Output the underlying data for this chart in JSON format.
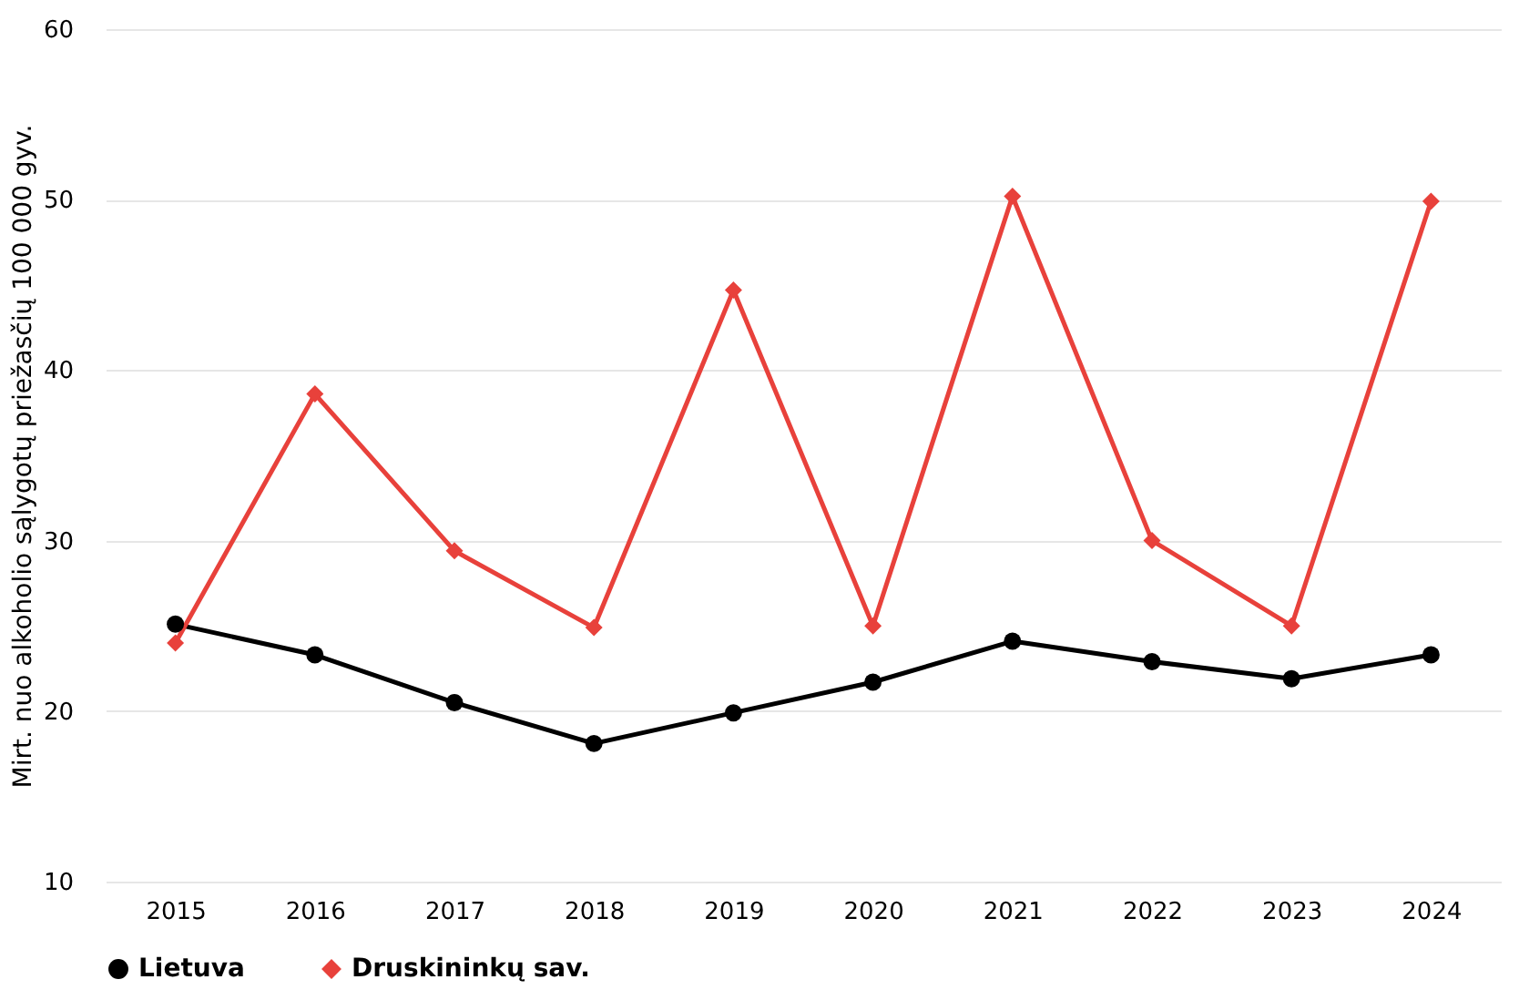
{
  "chart_data": {
    "type": "line",
    "ylabel": "Mirt. nuo alkoholio sąlygotų priežasčių 100 000 gyv.",
    "categories": [
      "2015",
      "2016",
      "2017",
      "2018",
      "2019",
      "2020",
      "2021",
      "2022",
      "2023",
      "2024"
    ],
    "series": [
      {
        "name": "Lietuva",
        "color": "#000000",
        "marker": "circle",
        "values": [
          25.1,
          23.3,
          20.5,
          18.1,
          19.9,
          21.7,
          24.1,
          22.9,
          21.9,
          23.3
        ]
      },
      {
        "name": "Druskininkų sav.",
        "color": "#e8413b",
        "marker": "diamond",
        "values": [
          24.0,
          38.6,
          29.4,
          24.9,
          44.7,
          25.0,
          50.2,
          30.0,
          25.0,
          49.9
        ]
      }
    ],
    "ylim": [
      10,
      60
    ],
    "yticks": [
      10,
      20,
      30,
      40,
      50,
      60
    ],
    "grid": "y",
    "legend": "bottom",
    "line_style": "solid"
  }
}
